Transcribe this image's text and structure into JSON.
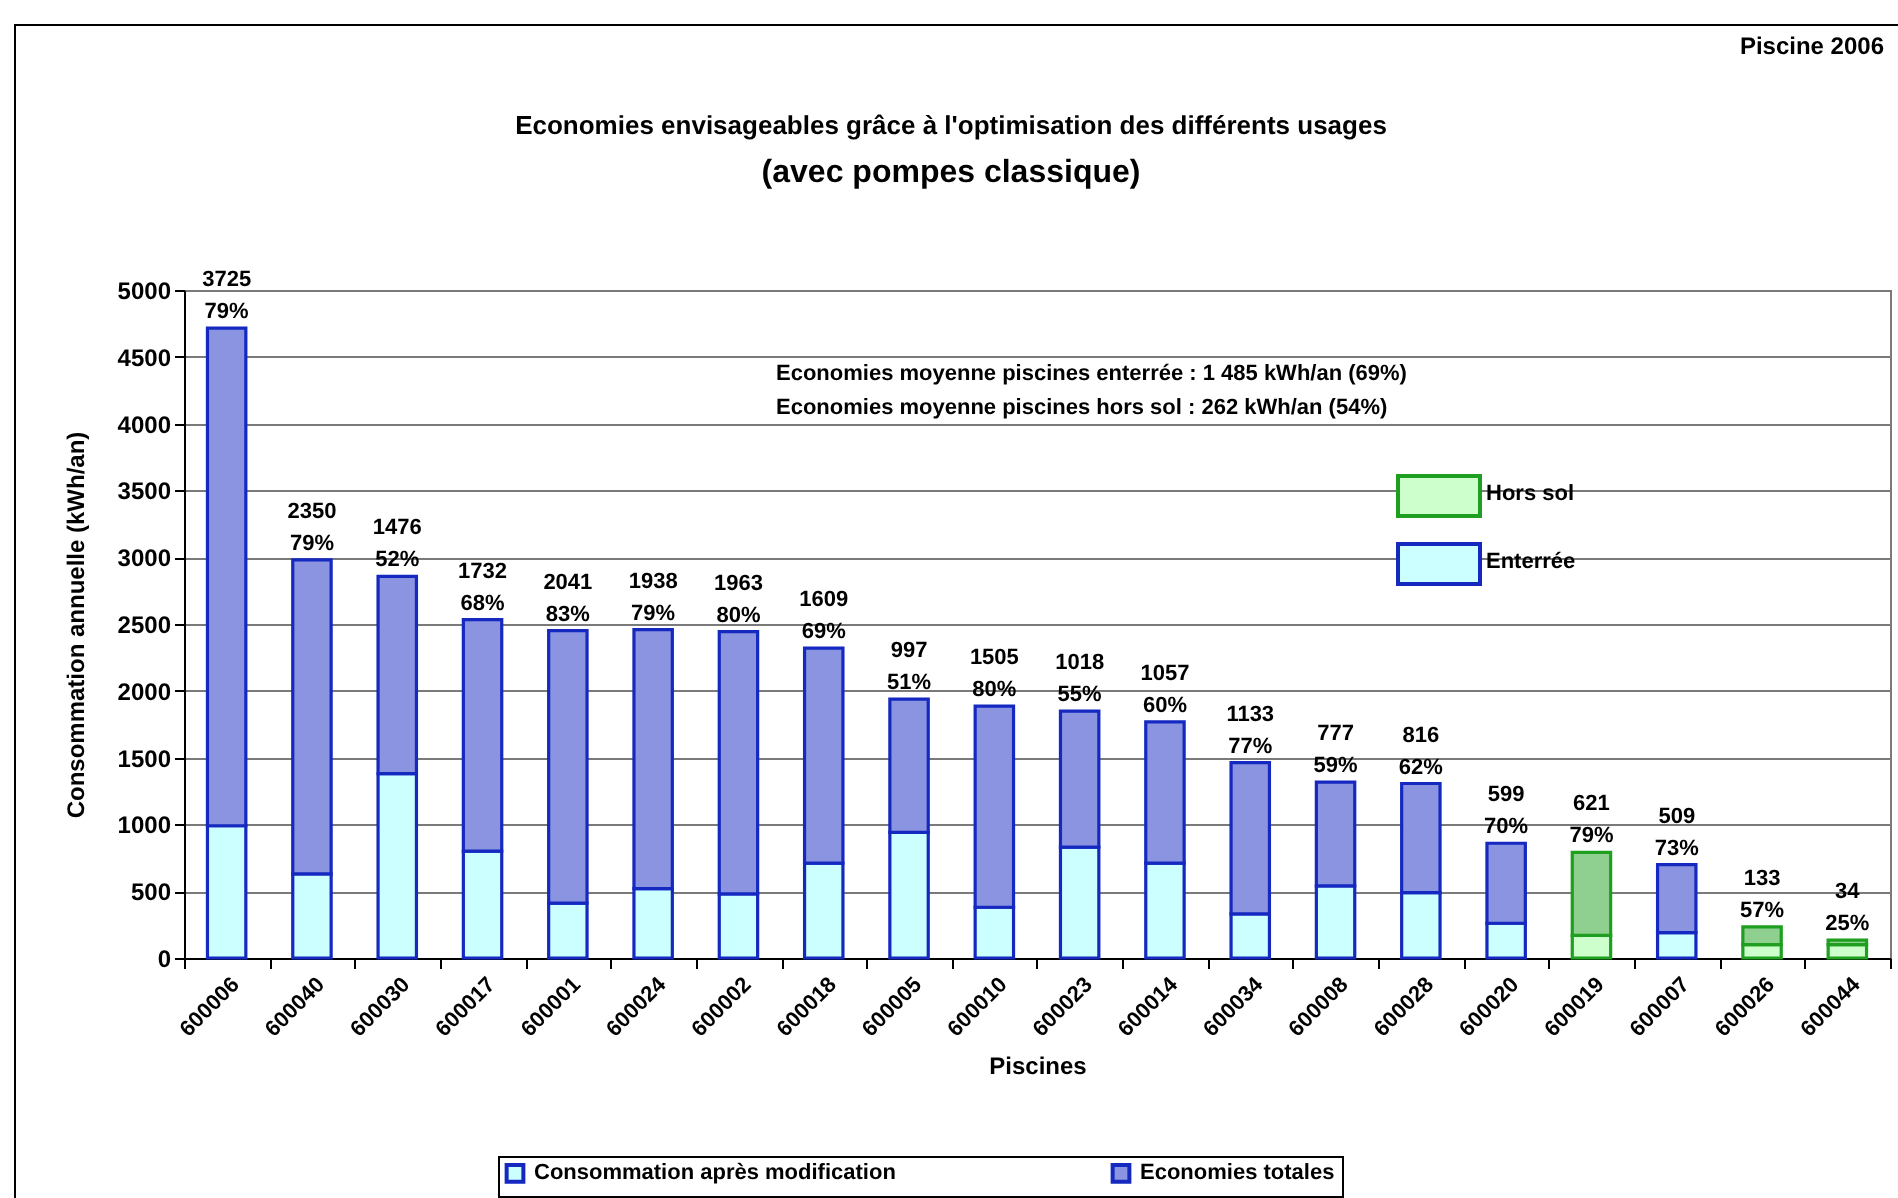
{
  "chart_data": {
    "type": "bar",
    "title": "Economies envisageables grâce à l'optimisation des différents usages",
    "subtitle": "(avec pompes classique)",
    "xlabel": "Piscines",
    "ylabel": "Consommation annuelle (kWh/an)",
    "annotations": [
      "Piscine 2006",
      "Economies moyenne piscines enterrée : 1 485 kWh/an (69%)",
      "Economies moyenne piscines hors sol : 262 kWh/an (54%)",
      "Hors sol",
      "Enterrée"
    ],
    "categories": [
      "600006",
      "600040",
      "600030",
      "600017",
      "600001",
      "600024",
      "600002",
      "600018",
      "600005",
      "600010",
      "600023",
      "600014",
      "600034",
      "600008",
      "600028",
      "600020",
      "600019",
      "600007",
      "600026",
      "600044"
    ],
    "stacked": true,
    "series": [
      {
        "name": "Consommation après modification",
        "color": "#ccffff",
        "colors": [
          "#ccffff",
          "#ccffff",
          "#ccffff",
          "#ccffff",
          "#ccffff",
          "#ccffff",
          "#ccffff",
          "#ccffff",
          "#ccffff",
          "#ccffff",
          "#ccffff",
          "#ccffff",
          "#ccffff",
          "#ccffff",
          "#ccffff",
          "#ccffff",
          "#ccffcc",
          "#ccffff",
          "#ccffcc",
          "#ccffcc"
        ],
        "values": [
          990,
          630,
          1380,
          800,
          410,
          520,
          480,
          710,
          940,
          380,
          830,
          710,
          330,
          540,
          490,
          260,
          170,
          190,
          100,
          100
        ]
      },
      {
        "name": "Economies totales",
        "color": "#8a94e0",
        "colors": [
          "#8a94e0",
          "#8a94e0",
          "#8a94e0",
          "#8a94e0",
          "#8a94e0",
          "#8a94e0",
          "#8a94e0",
          "#8a94e0",
          "#8a94e0",
          "#8a94e0",
          "#8a94e0",
          "#8a94e0",
          "#8a94e0",
          "#8a94e0",
          "#8a94e0",
          "#8a94e0",
          "#8fcf8f",
          "#8a94e0",
          "#8fcf8f",
          "#8fcf8f"
        ],
        "values": [
          3725,
          2350,
          1476,
          1732,
          2041,
          1938,
          1963,
          1609,
          997,
          1505,
          1018,
          1057,
          1133,
          777,
          816,
          599,
          621,
          509,
          133,
          34
        ],
        "value_labels": [
          "3725\n79%",
          "2350\n79%",
          "1476\n52%",
          "1732\n68%",
          "2041\n83%",
          "1938\n79%",
          "1963\n80%",
          "1609\n69%",
          "997\n51%",
          "1505\n80%",
          "1018\n55%",
          "1057\n60%",
          "1133\n77%",
          "777\n59%",
          "816\n62%",
          "599\n70%",
          "621\n79%",
          "509\n73%",
          "133\n57%",
          "34\n25%"
        ]
      }
    ],
    "ylim": [
      0,
      5000
    ],
    "yticks": [
      0,
      500,
      1000,
      1500,
      2000,
      2500,
      3000,
      3500,
      4000,
      4500,
      5000
    ],
    "grid": "y",
    "legend": "bottom"
  }
}
